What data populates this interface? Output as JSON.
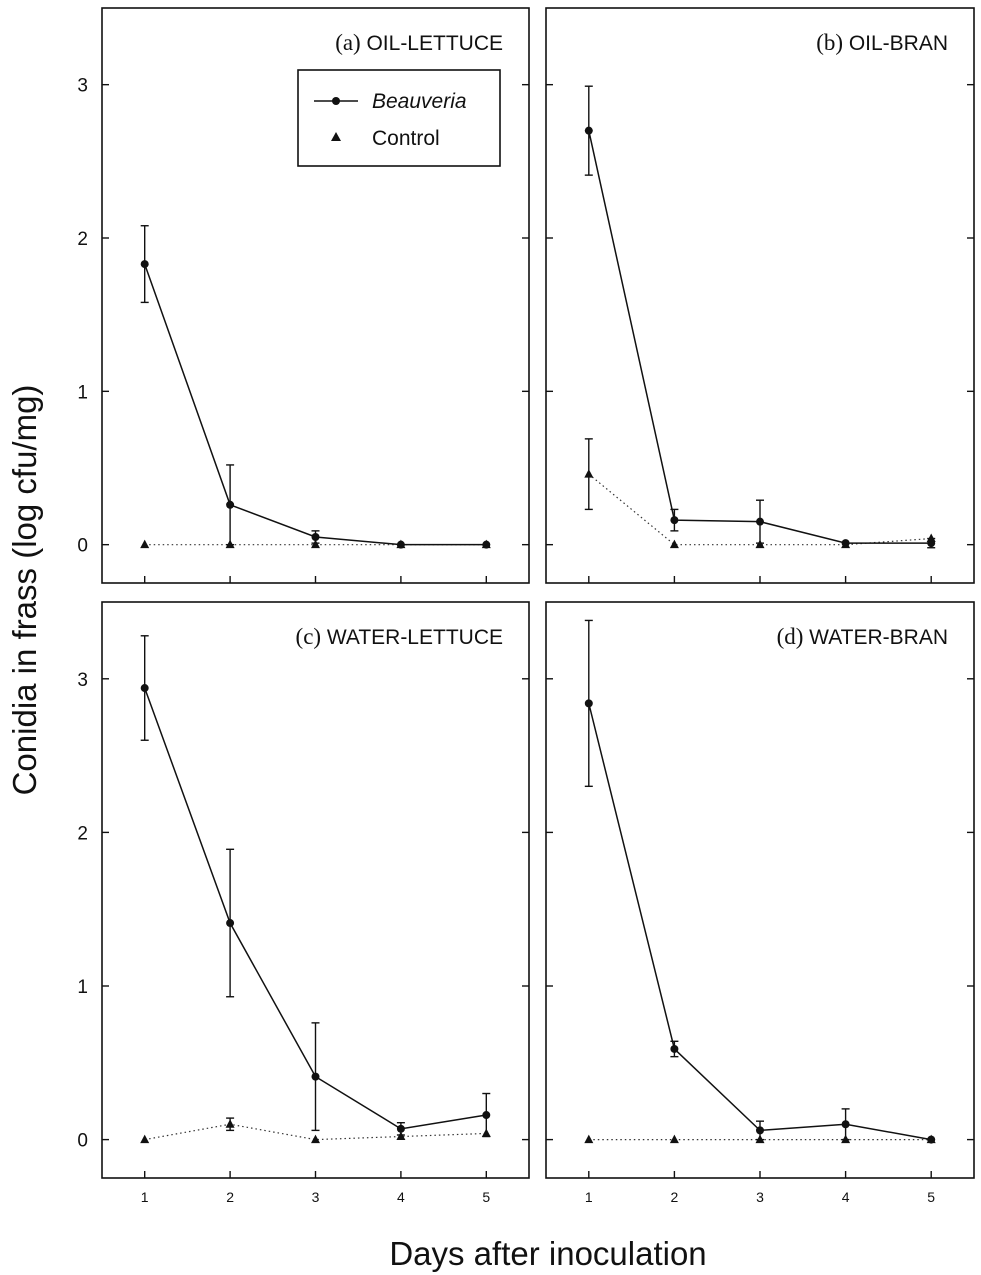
{
  "figure": {
    "ylabel": "Conidia in frass (log cfu/mg)",
    "xlabel": "Days after inoculation",
    "legend": {
      "entries": [
        {
          "label": "Beauveria",
          "marker": "circle",
          "line": "solid"
        },
        {
          "label": "Control",
          "marker": "triangle",
          "line": "dotted"
        }
      ]
    }
  },
  "chart_data": [
    {
      "type": "line",
      "panel": "(a)",
      "title": "OIL-LETTUCE",
      "x": [
        1,
        2,
        3,
        4,
        5
      ],
      "xlim": [
        0.5,
        5.5
      ],
      "ylim": [
        -0.25,
        3.5
      ],
      "yticks": [
        0,
        1,
        2,
        3
      ],
      "xticks": [
        1,
        2,
        3,
        4,
        5
      ],
      "legend_position": "top-center",
      "series": [
        {
          "name": "Beauveria",
          "values": [
            1.83,
            0.26,
            0.05,
            0.0,
            0.0
          ],
          "err": [
            0.25,
            0.26,
            0.04,
            0.0,
            0.0
          ]
        },
        {
          "name": "Control",
          "values": [
            0.0,
            0.0,
            0.0,
            0.0,
            0.0
          ],
          "err": [
            0,
            0,
            0,
            0,
            0
          ]
        }
      ]
    },
    {
      "type": "line",
      "panel": "(b)",
      "title": "OIL-BRAN",
      "x": [
        1,
        2,
        3,
        4,
        5
      ],
      "xlim": [
        0.5,
        5.5
      ],
      "ylim": [
        -0.25,
        3.5
      ],
      "yticks": [
        0,
        1,
        2,
        3
      ],
      "xticks": [
        1,
        2,
        3,
        4,
        5
      ],
      "series": [
        {
          "name": "Beauveria",
          "values": [
            2.7,
            0.16,
            0.15,
            0.01,
            0.01
          ],
          "err": [
            0.29,
            0.07,
            0.14,
            0.0,
            0.03
          ]
        },
        {
          "name": "Control",
          "values": [
            0.46,
            0.0,
            0.0,
            0.0,
            0.04
          ],
          "err": [
            0.23,
            0.0,
            0.0,
            0.0,
            0.0
          ]
        }
      ]
    },
    {
      "type": "line",
      "panel": "(c)",
      "title": "WATER-LETTUCE",
      "x": [
        1,
        2,
        3,
        4,
        5
      ],
      "xlim": [
        0.5,
        5.5
      ],
      "ylim": [
        -0.25,
        3.5
      ],
      "yticks": [
        0,
        1,
        2,
        3
      ],
      "xticks": [
        1,
        2,
        3,
        4,
        5
      ],
      "series": [
        {
          "name": "Beauveria",
          "values": [
            2.94,
            1.41,
            0.41,
            0.07,
            0.16
          ],
          "err": [
            0.34,
            0.48,
            0.35,
            0.04,
            0.14
          ]
        },
        {
          "name": "Control",
          "values": [
            0.0,
            0.1,
            0.0,
            0.02,
            0.04
          ],
          "err": [
            0,
            0.04,
            0,
            0,
            0
          ]
        }
      ]
    },
    {
      "type": "line",
      "panel": "(d)",
      "title": "WATER-BRAN",
      "x": [
        1,
        2,
        3,
        4,
        5
      ],
      "xlim": [
        0.5,
        5.5
      ],
      "ylim": [
        -0.25,
        3.5
      ],
      "yticks": [
        0,
        1,
        2,
        3
      ],
      "xticks": [
        1,
        2,
        3,
        4,
        5
      ],
      "series": [
        {
          "name": "Beauveria",
          "values": [
            2.84,
            0.59,
            0.06,
            0.1,
            0.0
          ],
          "err": [
            0.54,
            0.05,
            0.06,
            0.1,
            0.0
          ]
        },
        {
          "name": "Control",
          "values": [
            0.0,
            0.0,
            0.0,
            0.0,
            0.0
          ],
          "err": [
            0,
            0,
            0,
            0,
            0
          ]
        }
      ]
    }
  ]
}
